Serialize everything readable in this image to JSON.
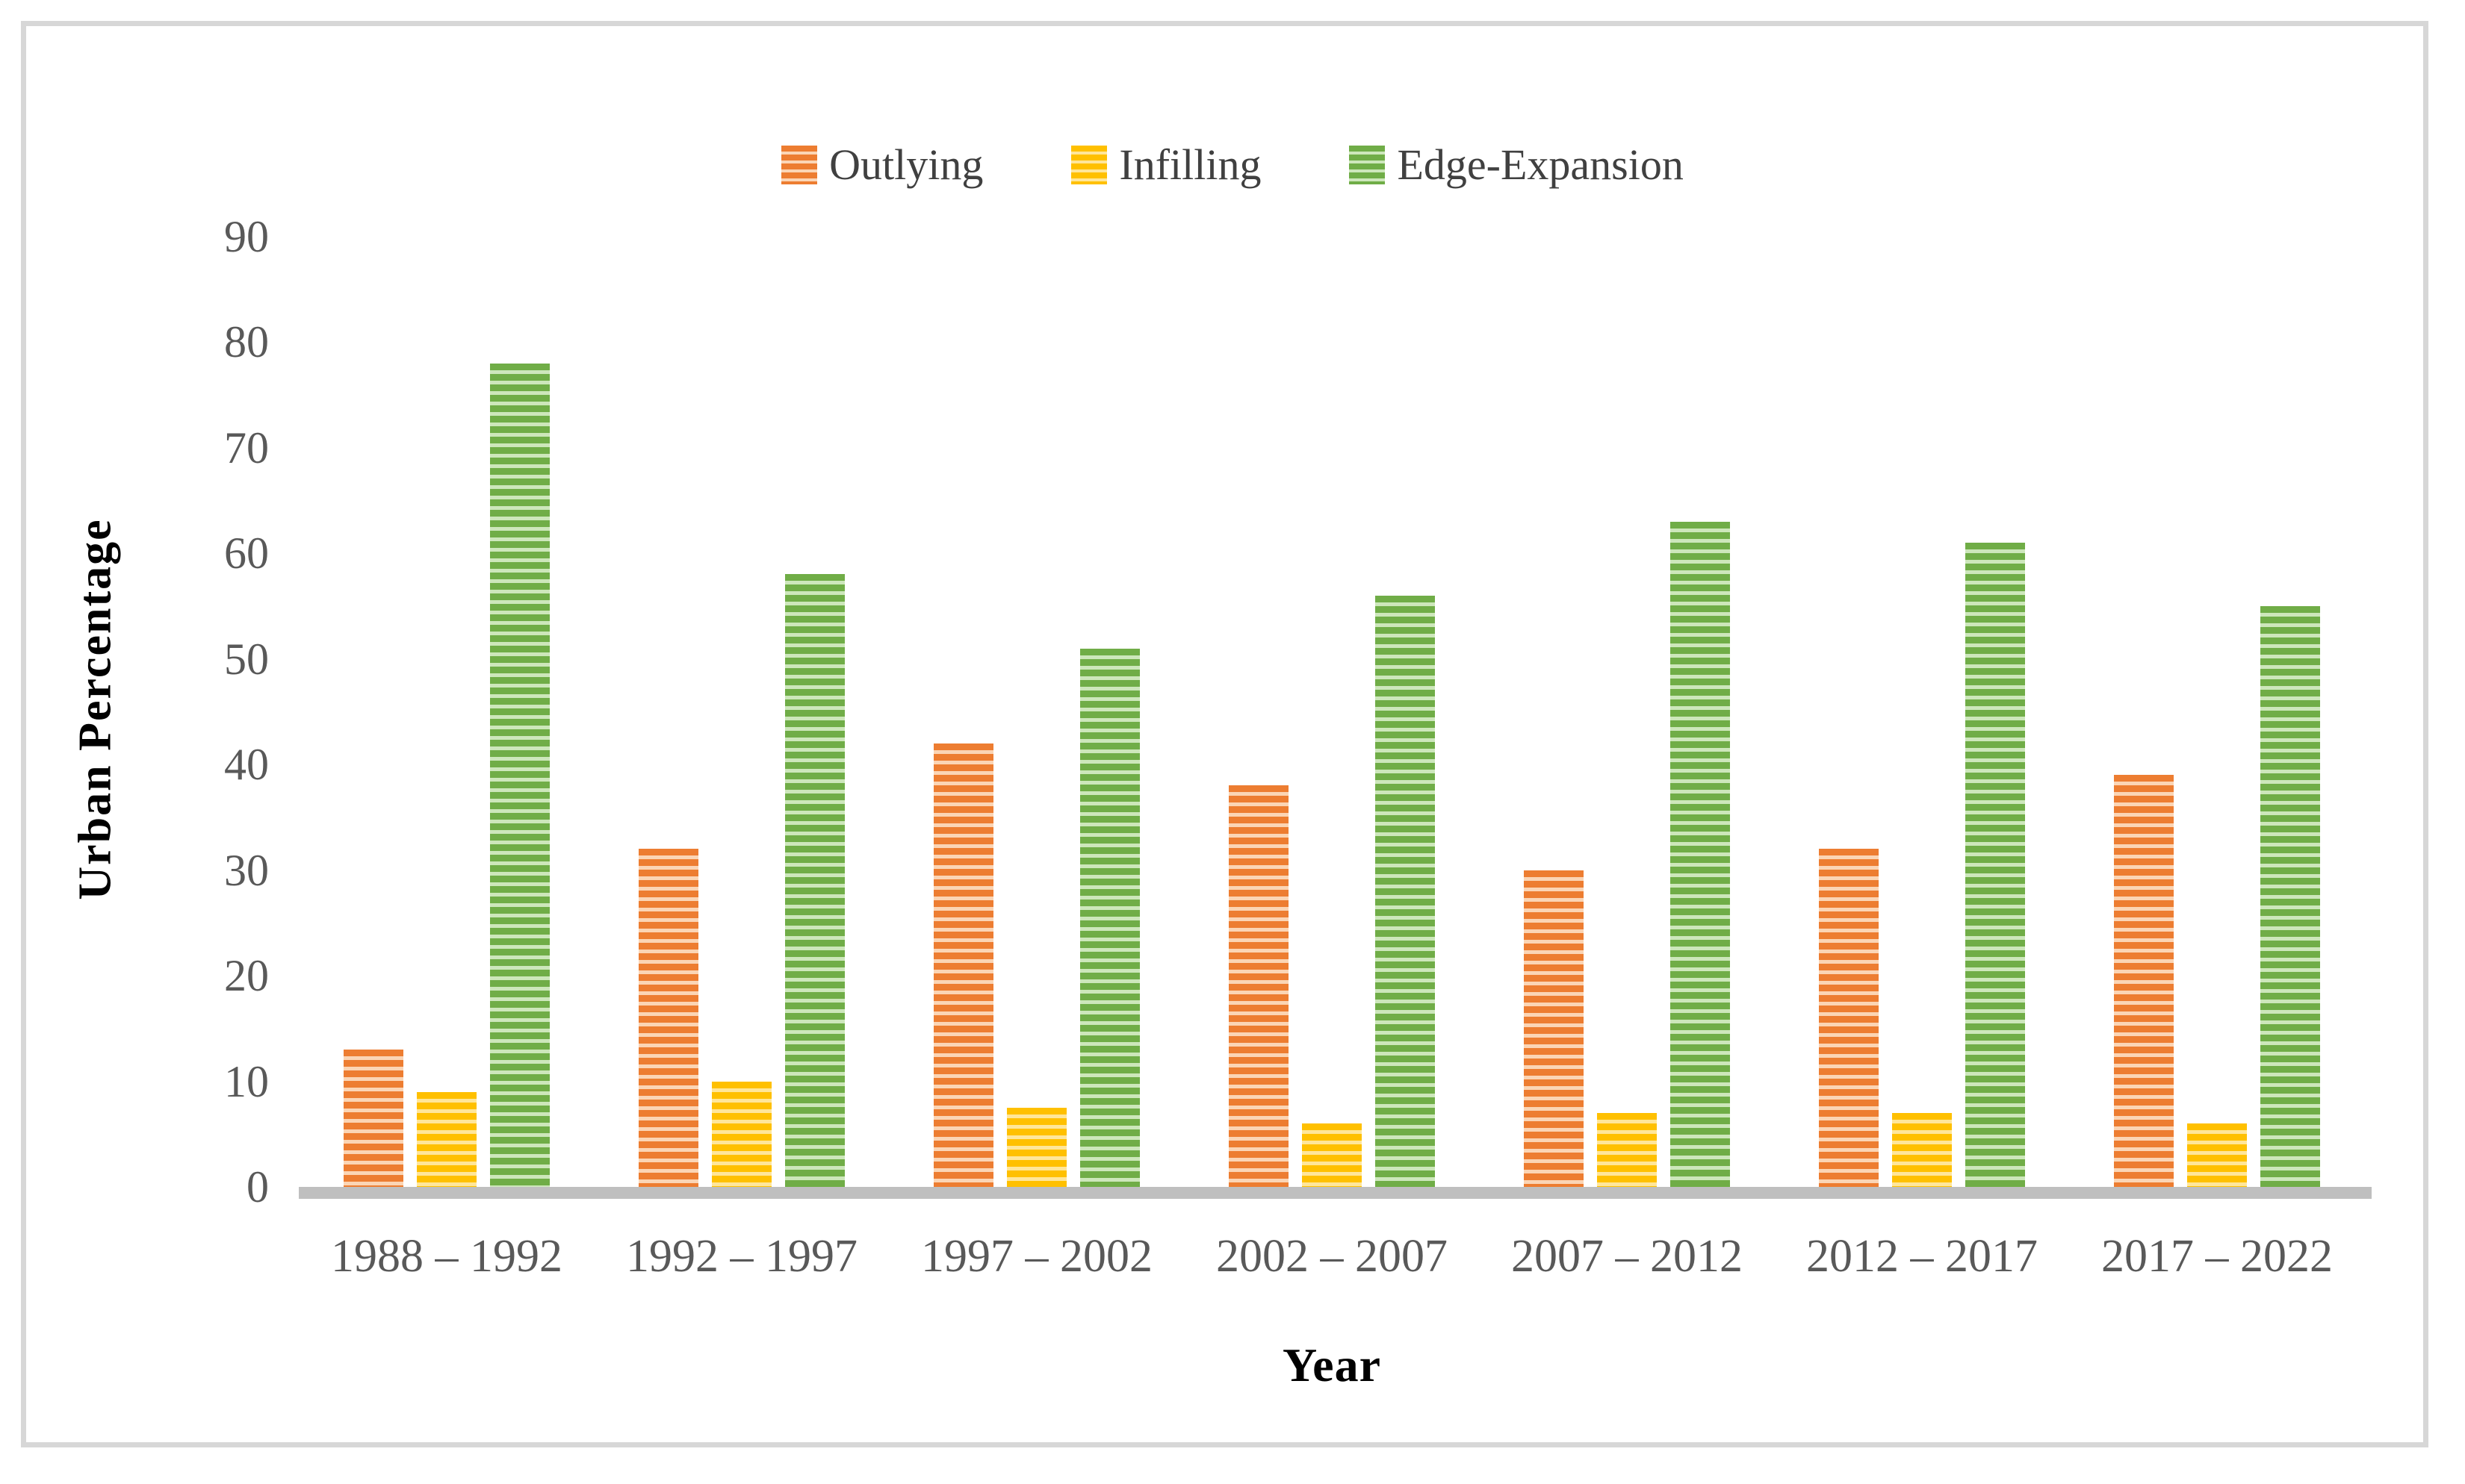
{
  "chart_data": {
    "type": "bar",
    "title": "",
    "categories": [
      "1988 – 1992",
      "1992 – 1997",
      "1997 – 2002",
      "2002 – 2007",
      "2007 – 2012",
      "2012 – 2017",
      "2017 – 2022"
    ],
    "series": [
      {
        "name": "Outlying",
        "color": "#ED7D31",
        "stripe_light": "#FBD5B5",
        "values": [
          13,
          32,
          42,
          38,
          30,
          32,
          39
        ]
      },
      {
        "name": "Infilling",
        "color": "#FFC000",
        "stripe_light": "#FFE699",
        "values": [
          9,
          10,
          7.5,
          6,
          7,
          7,
          6
        ]
      },
      {
        "name": "Edge-Expansion",
        "color": "#70AD47",
        "stripe_light": "#CDE7BB",
        "values": [
          78,
          58,
          51,
          56,
          63,
          61,
          55
        ]
      }
    ],
    "xlabel": "Year",
    "ylabel": "Urban Percentage",
    "ylim": [
      0,
      90
    ],
    "yticks": [
      0,
      10,
      20,
      30,
      40,
      50,
      60,
      70,
      80,
      90
    ],
    "grid": false,
    "legend_position": "top-center",
    "bar_pattern": "horizontal-stripes"
  },
  "colors": {
    "background": "#FFFFFF",
    "frame_border": "#D7D7D7",
    "axis_line": "#BFBFBF",
    "tick_text": "#595959",
    "category_text": "#595959",
    "legend_text": "#404040",
    "title_text": "#000000"
  }
}
